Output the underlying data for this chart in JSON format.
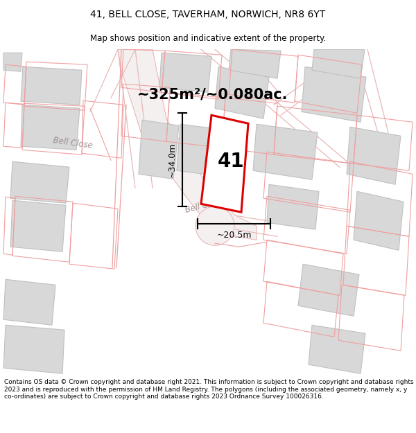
{
  "title": "41, BELL CLOSE, TAVERHAM, NORWICH, NR8 6YT",
  "subtitle": "Map shows position and indicative extent of the property.",
  "area_text": "~325m²/~0.080ac.",
  "property_number": "41",
  "dim_height": "~34.0m",
  "dim_width": "~20.5m",
  "street_label": "Bell Close",
  "copyright_text": "Contains OS data © Crown copyright and database right 2021. This information is subject to Crown copyright and database rights 2023 and is reproduced with the permission of HM Land Registry. The polygons (including the associated geometry, namely x, y co-ordinates) are subject to Crown copyright and database rights 2023 Ordnance Survey 100026316.",
  "bg_color": "#f8f8f8",
  "plot_red": "#dd0000",
  "building_fill": "#d8d8d8",
  "building_edge": "#c0c0c0",
  "road_outline": "#e8b8b8",
  "prop_outline_color": "#f0a0a0",
  "street_color": "#b0a0a0",
  "title_fontsize": 10,
  "subtitle_fontsize": 8.5,
  "area_fontsize": 15,
  "prop_num_fontsize": 20,
  "dim_fontsize": 9,
  "copyright_fontsize": 6.5
}
